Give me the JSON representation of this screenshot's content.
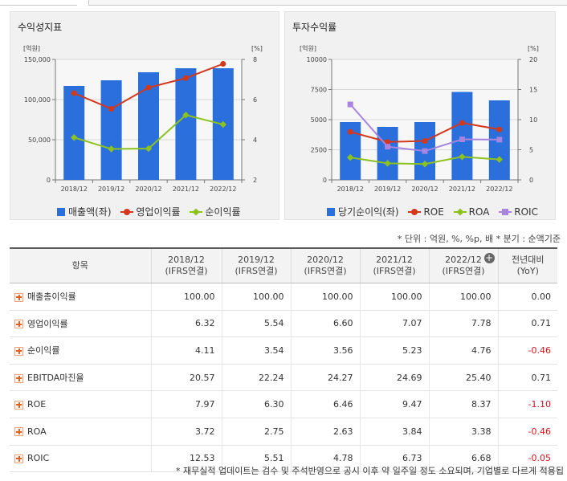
{
  "colors": {
    "bar": "#2a6fdb",
    "red": "#d4381c",
    "green": "#8cc21f",
    "purple": "#a684e0",
    "grid": "#d8d8d8",
    "axis": "#777777"
  },
  "chart_data": [
    {
      "type": "bar",
      "title": "수익성지표",
      "left_unit": "[억원]",
      "right_unit": "[%]",
      "categories": [
        "2018/12",
        "2019/12",
        "2020/12",
        "2021/12",
        "2022/12"
      ],
      "left_ylim": [
        0,
        150000
      ],
      "left_ticks": [
        "0",
        "50,000",
        "100,000",
        "150,000"
      ],
      "right_ylim": [
        2,
        8
      ],
      "right_ticks": [
        "2",
        "4",
        "6",
        "8"
      ],
      "grid": true,
      "legend_position": "bottom",
      "series": [
        {
          "name": "매출액(좌)",
          "type": "bar",
          "axis": "left",
          "values": [
            117000,
            124000,
            134000,
            139000,
            139000
          ]
        },
        {
          "name": "영업이익률",
          "type": "line",
          "axis": "right",
          "values": [
            6.32,
            5.54,
            6.6,
            7.07,
            7.78
          ]
        },
        {
          "name": "순이익률",
          "type": "line",
          "axis": "right",
          "values": [
            4.11,
            3.54,
            3.56,
            5.23,
            4.76
          ]
        }
      ]
    },
    {
      "type": "bar",
      "title": "투자수익률",
      "left_unit": "[억원]",
      "right_unit": "[%]",
      "categories": [
        "2018/12",
        "2019/12",
        "2020/12",
        "2021/12",
        "2022/12"
      ],
      "left_ylim": [
        0,
        10000
      ],
      "left_ticks": [
        "0",
        "2500",
        "5000",
        "7500",
        "10000"
      ],
      "right_ylim": [
        0,
        20
      ],
      "right_ticks": [
        "0",
        "5",
        "10",
        "15",
        "20"
      ],
      "grid": true,
      "legend_position": "bottom",
      "series": [
        {
          "name": "당기순이익(좌)",
          "type": "bar",
          "axis": "left",
          "values": [
            4800,
            4400,
            4800,
            7300,
            6600
          ]
        },
        {
          "name": "ROE",
          "type": "line",
          "axis": "right",
          "values": [
            7.97,
            6.3,
            6.46,
            9.47,
            8.37
          ]
        },
        {
          "name": "ROA",
          "type": "line",
          "axis": "right",
          "values": [
            3.72,
            2.75,
            2.63,
            3.84,
            3.38
          ]
        },
        {
          "name": "ROIC",
          "type": "line",
          "axis": "right",
          "values": [
            12.53,
            5.51,
            4.78,
            6.73,
            6.68
          ]
        }
      ]
    }
  ],
  "unit_note": "* 단위 : 억원, %, %p, 배    * 분기 : 순액기준",
  "table": {
    "headers": [
      {
        "line1": "항목",
        "line2": ""
      },
      {
        "line1": "2018/12",
        "line2": "(IFRS연결)"
      },
      {
        "line1": "2019/12",
        "line2": "(IFRS연결)"
      },
      {
        "line1": "2020/12",
        "line2": "(IFRS연결)"
      },
      {
        "line1": "2021/12",
        "line2": "(IFRS연결)"
      },
      {
        "line1": "2022/12",
        "line2": "(IFRS연결)"
      },
      {
        "line1": "전년대비",
        "line2": "(YoY)"
      }
    ],
    "plus_symbol": "+",
    "rows": [
      {
        "label": "매출총이익률",
        "values": [
          "100.00",
          "100.00",
          "100.00",
          "100.00",
          "100.00",
          "0.00"
        ]
      },
      {
        "label": "영업이익률",
        "values": [
          "6.32",
          "5.54",
          "6.60",
          "7.07",
          "7.78",
          "0.71"
        ]
      },
      {
        "label": "순이익률",
        "values": [
          "4.11",
          "3.54",
          "3.56",
          "5.23",
          "4.76",
          "-0.46"
        ]
      },
      {
        "label": "EBITDA마진율",
        "values": [
          "20.57",
          "22.24",
          "24.27",
          "24.69",
          "25.40",
          "0.71"
        ]
      },
      {
        "label": "ROE",
        "values": [
          "7.97",
          "6.30",
          "6.46",
          "9.47",
          "8.37",
          "-1.10"
        ]
      },
      {
        "label": "ROA",
        "values": [
          "3.72",
          "2.75",
          "2.63",
          "3.84",
          "3.38",
          "-0.46"
        ]
      },
      {
        "label": "ROIC",
        "values": [
          "12.53",
          "5.51",
          "4.78",
          "6.73",
          "6.68",
          "-0.05"
        ]
      }
    ]
  },
  "footnote": "* 재무실적 업데이트는 검수 및 주석반영으로 공시 이후 약 일주일 정도 소요되며, 기업별로 다르게 적용됩"
}
